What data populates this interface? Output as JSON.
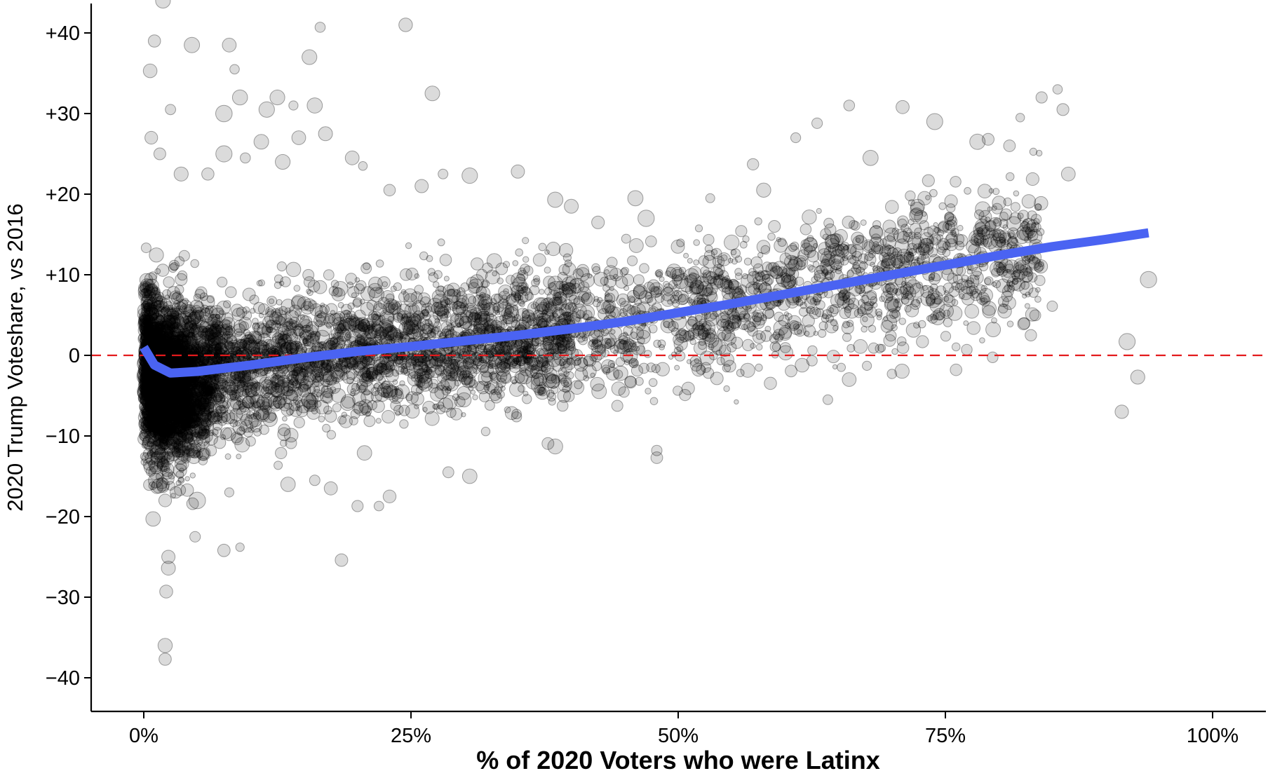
{
  "chart_data": {
    "type": "scatter",
    "title": "",
    "xlabel": "% of 2020 Voters who were Latinx",
    "ylabel": "2020 Trump Voteshare, vs 2016",
    "x_unit": "percent",
    "xlim": [
      -5,
      105
    ],
    "ylim": [
      -44,
      44
    ],
    "x_ticks": [
      0,
      25,
      50,
      75,
      100
    ],
    "x_tick_labels": [
      "0%",
      "25%",
      "50%",
      "75%",
      "100%"
    ],
    "y_ticks": [
      40,
      30,
      20,
      10,
      0,
      -10,
      -20,
      -30,
      -40
    ],
    "y_tick_labels": [
      "+40",
      "+30",
      "+20",
      "+10",
      "0",
      "−10",
      "−20",
      "−30",
      "−40"
    ],
    "grid": false,
    "legend": "none",
    "reference_line": {
      "y": 0,
      "style": "dashed",
      "color": "#e31a1c"
    },
    "trend_line": {
      "color": "#4a63f2",
      "points": [
        [
          0,
          1
        ],
        [
          1,
          -1.2
        ],
        [
          2.5,
          -2.2
        ],
        [
          5,
          -2
        ],
        [
          10,
          -1.2
        ],
        [
          15,
          -0.3
        ],
        [
          20,
          0.5
        ],
        [
          25,
          1.1
        ],
        [
          30,
          1.8
        ],
        [
          35,
          2.5
        ],
        [
          40,
          3.3
        ],
        [
          45,
          4.2
        ],
        [
          50,
          5.3
        ],
        [
          55,
          6.4
        ],
        [
          60,
          7.6
        ],
        [
          65,
          8.8
        ],
        [
          70,
          10
        ],
        [
          75,
          11.2
        ],
        [
          80,
          12.4
        ],
        [
          85,
          13.5
        ],
        [
          90,
          14.4
        ],
        [
          94,
          15.2
        ]
      ]
    },
    "scatter_colors": {
      "fill": "#000000",
      "opacity": 0.14
    },
    "outlier_points": [
      [
        1,
        39
      ],
      [
        1.8,
        44
      ],
      [
        0.6,
        35.3
      ],
      [
        2.5,
        30.5
      ],
      [
        0.7,
        27
      ],
      [
        1.5,
        25
      ],
      [
        4.5,
        38.5
      ],
      [
        8,
        38.5
      ],
      [
        8.5,
        35.5
      ],
      [
        15.5,
        37
      ],
      [
        16.5,
        40.7
      ],
      [
        24.5,
        41
      ],
      [
        11.5,
        30.5
      ],
      [
        12.5,
        32
      ],
      [
        14,
        31
      ],
      [
        16,
        31
      ],
      [
        9,
        32
      ],
      [
        7.5,
        30
      ],
      [
        11,
        26.5
      ],
      [
        14.5,
        27
      ],
      [
        17,
        27.5
      ],
      [
        7.5,
        25
      ],
      [
        9.5,
        24.5
      ],
      [
        3.5,
        22.5
      ],
      [
        6,
        22.5
      ],
      [
        13,
        24
      ],
      [
        19.5,
        24.5
      ],
      [
        20.5,
        23.5
      ],
      [
        23,
        20.5
      ],
      [
        26,
        21
      ],
      [
        28,
        22.5
      ],
      [
        30.5,
        22.3
      ],
      [
        35,
        22.8
      ],
      [
        27,
        32.5
      ],
      [
        2,
        -18
      ],
      [
        3,
        -17
      ],
      [
        5,
        -18
      ],
      [
        8,
        -17
      ],
      [
        7.5,
        -24.2
      ],
      [
        9,
        -23.8
      ],
      [
        4.8,
        -22.5
      ],
      [
        2.3,
        -26.4
      ],
      [
        2.3,
        -25
      ],
      [
        2.1,
        -29.3
      ],
      [
        2,
        -36
      ],
      [
        2,
        -37.7
      ],
      [
        18.5,
        -25.4
      ],
      [
        13.5,
        -16
      ],
      [
        16,
        -15.5
      ],
      [
        17.5,
        -16.5
      ],
      [
        20,
        -18.7
      ],
      [
        22,
        -18.7
      ],
      [
        23,
        -17.5
      ],
      [
        28.5,
        -14.5
      ],
      [
        30.5,
        -15
      ],
      [
        38.5,
        -11.3
      ],
      [
        48,
        -11.8
      ],
      [
        48,
        -12.7
      ],
      [
        64,
        -5.5
      ],
      [
        66,
        -3
      ],
      [
        70,
        -2.3
      ],
      [
        76,
        -1.8
      ],
      [
        77,
        0.7
      ],
      [
        91.5,
        -7
      ],
      [
        92,
        1.7
      ],
      [
        93,
        -2.7
      ],
      [
        94,
        9.4
      ],
      [
        85,
        6.1
      ],
      [
        83,
        2.5
      ],
      [
        61,
        27
      ],
      [
        63,
        28.8
      ],
      [
        66,
        31
      ],
      [
        71,
        30.8
      ],
      [
        68,
        24.5
      ],
      [
        74,
        29
      ],
      [
        78,
        26.5
      ],
      [
        84,
        32
      ],
      [
        85.5,
        33
      ],
      [
        86,
        30.5
      ],
      [
        86.5,
        22.5
      ],
      [
        82,
        29.5
      ],
      [
        81,
        26
      ],
      [
        79,
        26.8
      ],
      [
        57,
        23.7
      ],
      [
        53,
        19.5
      ],
      [
        46,
        19.5
      ],
      [
        40,
        18.5
      ],
      [
        38.5,
        19.3
      ],
      [
        42.5,
        16.5
      ],
      [
        52.5,
        10.5
      ],
      [
        55,
        14
      ],
      [
        59,
        16
      ],
      [
        64,
        12
      ],
      [
        67,
        14
      ],
      [
        58,
        20.5
      ],
      [
        47,
        17
      ]
    ]
  }
}
